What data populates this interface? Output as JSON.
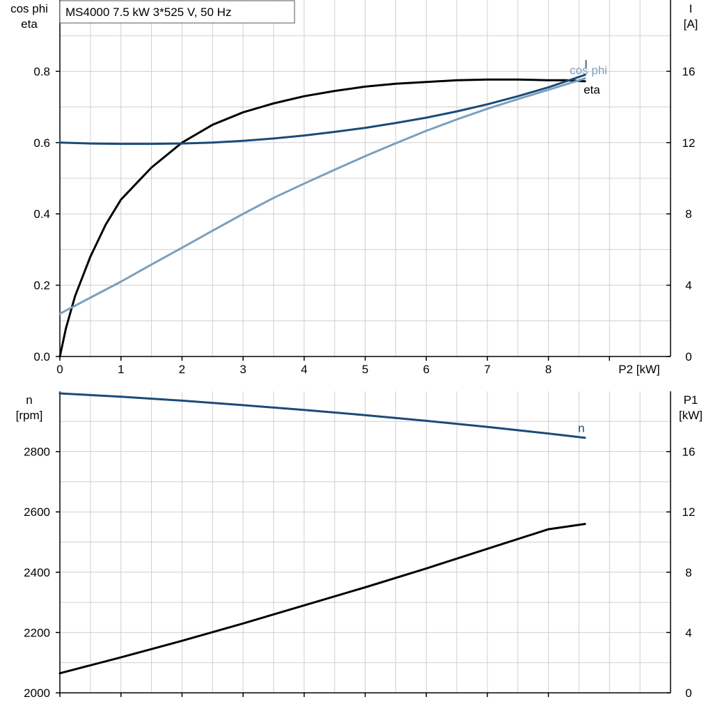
{
  "chart_data": [
    {
      "type": "line",
      "title": "MS4000   7.5 kW   3*525 V, 50 Hz",
      "xlabel": "P2 [kW]",
      "ylabel": [
        "cos phi",
        "eta"
      ],
      "ylabel_right": [
        "I",
        "[A]"
      ],
      "xlim": [
        0,
        10
      ],
      "ylim": [
        0,
        1.0
      ],
      "ylim_right": [
        0,
        20
      ],
      "x_ticks": [
        0,
        1,
        2,
        3,
        4,
        5,
        6,
        7,
        8
      ],
      "y_ticks": [
        0.0,
        0.2,
        0.4,
        0.6,
        0.8
      ],
      "y_tick_labels": [
        "0.0",
        "0.2",
        "0.4",
        "0.6",
        "0.8"
      ],
      "y_ticks_right": [
        0,
        4,
        8,
        12,
        16
      ],
      "grid": true,
      "series": [
        {
          "name": "eta",
          "axis": "left",
          "color": "#000000",
          "x": [
            0,
            0.1,
            0.25,
            0.5,
            0.75,
            1,
            1.5,
            2,
            2.5,
            3,
            3.5,
            4,
            4.5,
            5,
            5.5,
            6,
            6.5,
            7,
            7.5,
            8,
            8.3,
            8.6
          ],
          "y": [
            0.0,
            0.08,
            0.17,
            0.28,
            0.37,
            0.44,
            0.53,
            0.6,
            0.65,
            0.685,
            0.71,
            0.73,
            0.745,
            0.757,
            0.765,
            0.77,
            0.775,
            0.777,
            0.777,
            0.775,
            0.775,
            0.772
          ]
        },
        {
          "name": "cos phi",
          "axis": "left",
          "color": "#7b9fbd",
          "x": [
            0,
            0.5,
            1,
            1.5,
            2,
            2.5,
            3,
            3.5,
            4,
            4.5,
            5,
            5.5,
            6,
            6.5,
            7,
            7.5,
            8,
            8.6
          ],
          "y": [
            0.12,
            0.165,
            0.21,
            0.258,
            0.305,
            0.353,
            0.4,
            0.445,
            0.485,
            0.524,
            0.562,
            0.598,
            0.633,
            0.665,
            0.695,
            0.722,
            0.748,
            0.78
          ]
        },
        {
          "name": "I",
          "axis": "right",
          "color": "#1a4a7a",
          "x": [
            0,
            0.5,
            1,
            1.5,
            2,
            2.5,
            3,
            3.5,
            4,
            4.5,
            5,
            5.5,
            6,
            6.5,
            7,
            7.5,
            8,
            8.6
          ],
          "y": [
            12.0,
            11.95,
            11.93,
            11.93,
            11.95,
            12.0,
            12.1,
            12.23,
            12.4,
            12.6,
            12.83,
            13.1,
            13.4,
            13.75,
            14.15,
            14.6,
            15.1,
            15.8
          ]
        }
      ]
    },
    {
      "type": "line",
      "title": "",
      "xlabel": "",
      "ylabel": [
        "n",
        "[rpm]"
      ],
      "ylabel_right": [
        "P1",
        "[kW]"
      ],
      "xlim": [
        0,
        10
      ],
      "ylim": [
        2000,
        3000
      ],
      "ylim_right": [
        0,
        20
      ],
      "x_ticks": [
        0,
        1,
        2,
        3,
        4,
        5,
        6,
        7,
        8
      ],
      "y_ticks": [
        2000,
        2200,
        2400,
        2600,
        2800
      ],
      "y_ticks_right": [
        0,
        4,
        8,
        12,
        16
      ],
      "grid": true,
      "series": [
        {
          "name": "n",
          "axis": "left",
          "color": "#1a4a7a",
          "x": [
            0,
            1,
            2,
            3,
            4,
            5,
            6,
            7,
            8,
            8.6
          ],
          "y": [
            2993,
            2982,
            2969,
            2954,
            2938,
            2921,
            2902,
            2882,
            2860,
            2846
          ]
        },
        {
          "axis": "right",
          "color": "#000000",
          "x": [
            0,
            1,
            2,
            3,
            4,
            5,
            6,
            7,
            8,
            8.6
          ],
          "y": [
            1.3,
            2.35,
            3.45,
            4.6,
            5.8,
            7.0,
            8.25,
            9.55,
            10.85,
            11.2
          ]
        }
      ]
    }
  ]
}
